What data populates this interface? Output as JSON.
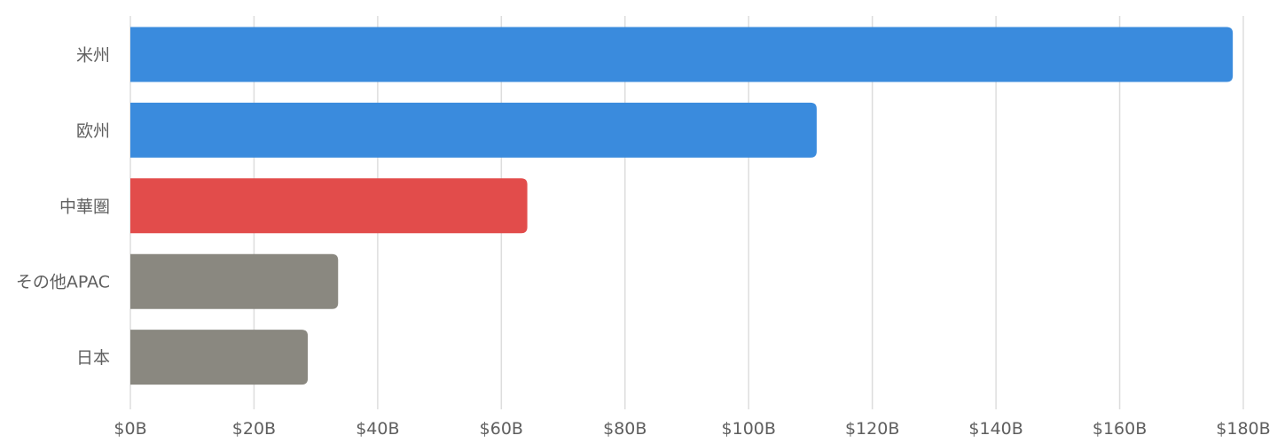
{
  "chart_data": {
    "type": "bar",
    "orientation": "horizontal",
    "categories": [
      "米州",
      "欧州",
      "中華圏",
      "その他APAC",
      "日本"
    ],
    "values": [
      178.3,
      111.0,
      64.2,
      33.6,
      28.7
    ],
    "colors": [
      "#3a8bdd",
      "#3a8bdd",
      "#e24c4b",
      "#8a8880",
      "#8a8880"
    ],
    "xlim": [
      0,
      180
    ],
    "xticks": [
      0,
      20,
      40,
      60,
      80,
      100,
      120,
      140,
      160,
      180
    ],
    "xtick_labels": [
      "$0B",
      "$20B",
      "$40B",
      "$60B",
      "$80B",
      "$100B",
      "$120B",
      "$140B",
      "$160B",
      "$180B"
    ],
    "grid": true,
    "title": "",
    "xlabel": "",
    "ylabel": ""
  }
}
